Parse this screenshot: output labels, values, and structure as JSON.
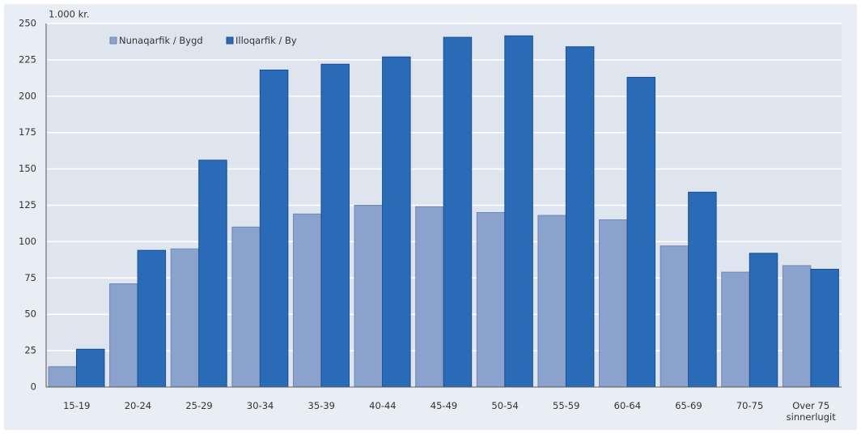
{
  "chart_data": {
    "type": "bar",
    "ylabel": "1.000 kr.",
    "categories": [
      "15-19",
      "20-24",
      "25-29",
      "30-34",
      "35-39",
      "40-44",
      "45-49",
      "50-54",
      "55-59",
      "60-64",
      "65-69",
      "70-75",
      "Over 75\nsinnerlugit"
    ],
    "series": [
      {
        "name": "Nunaqarfik / Bygd",
        "color": "#8aa2cc",
        "values": [
          14,
          71,
          95,
          110,
          119,
          125,
          124,
          120,
          118,
          115,
          97,
          79,
          83.5
        ]
      },
      {
        "name": "Illoqarfik / By",
        "color": "#2a6bb8",
        "values": [
          26,
          94,
          156,
          218,
          222,
          227,
          240.5,
          241.5,
          234,
          213,
          134,
          92,
          81
        ]
      }
    ],
    "ylim": [
      0,
      250
    ],
    "yticks": [
      0,
      25,
      50,
      75,
      100,
      125,
      150,
      175,
      200,
      225,
      250
    ],
    "grid": true,
    "legend": "top-left"
  }
}
